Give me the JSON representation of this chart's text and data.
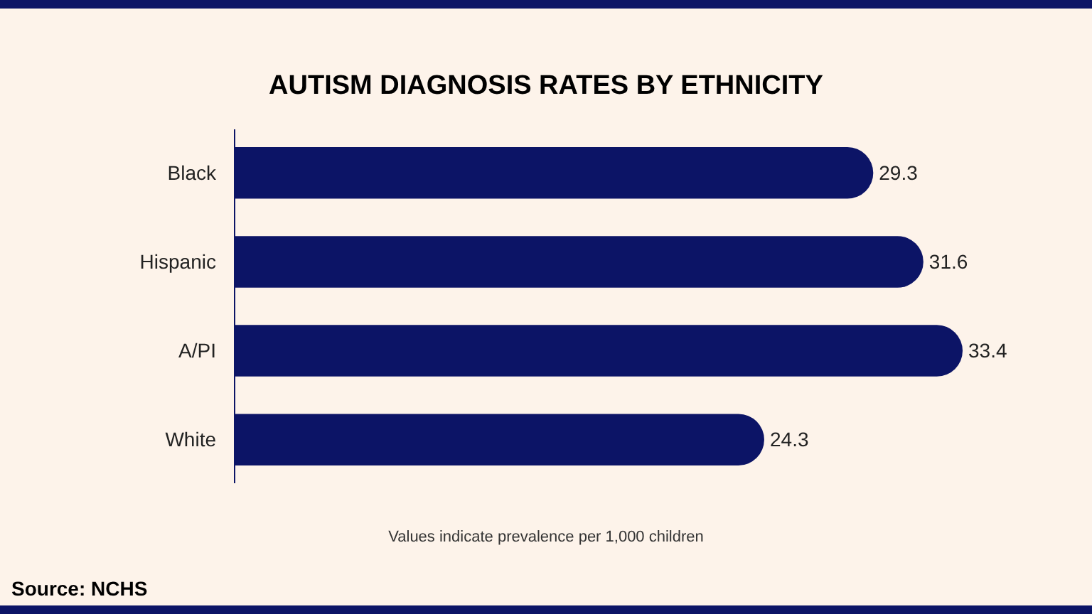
{
  "chart_data": {
    "type": "bar",
    "orientation": "horizontal",
    "title": "AUTISM DIAGNOSIS RATES BY ETHNICITY",
    "categories": [
      "Black",
      "Hispanic",
      "A/PI",
      "White"
    ],
    "values": [
      29.3,
      31.6,
      33.4,
      24.3
    ],
    "color": "#0c1466",
    "data_labels": true,
    "annotations": [
      "Values indicate prevalence per 1,000 children",
      "Source: NCHS"
    ]
  }
}
